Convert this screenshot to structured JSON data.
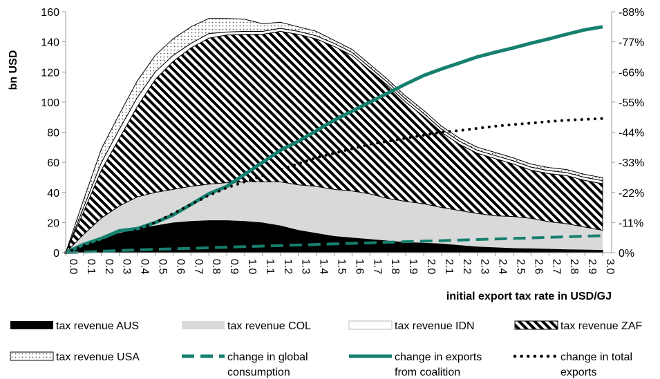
{
  "chart_data": {
    "type": "area",
    "ylabel": "bn USD",
    "xlabel": "initial export tax rate in USD/GJ",
    "x": [
      0.0,
      0.1,
      0.2,
      0.3,
      0.4,
      0.5,
      0.6,
      0.7,
      0.8,
      0.9,
      1.0,
      1.1,
      1.2,
      1.3,
      1.4,
      1.5,
      1.6,
      1.7,
      1.8,
      1.9,
      2.0,
      2.1,
      2.2,
      2.3,
      2.4,
      2.5,
      2.6,
      2.7,
      2.8,
      2.9,
      3.0
    ],
    "x_tick_labels": [
      "0.0",
      "0.1",
      "0.2",
      "0.3",
      "0.4",
      "0.5",
      "0.6",
      "0.7",
      "0.8",
      "0.9",
      "1.0",
      "1.1",
      "1.2",
      "1.3",
      "1.4",
      "1.5",
      "1.6",
      "1.7",
      "1.8",
      "1.9",
      "2.0",
      "2.1",
      "2.2",
      "2.3",
      "2.4",
      "2.5",
      "2.6",
      "2.7",
      "2.8",
      "2.9",
      "3.0"
    ],
    "ylim_left": [
      0,
      160
    ],
    "y_left_ticks": [
      "0",
      "20",
      "40",
      "60",
      "80",
      "100",
      "120",
      "140",
      "160"
    ],
    "ylim_right": [
      0,
      -88
    ],
    "y_right_ticks": [
      "0%",
      "-11%",
      "-22%",
      "-33%",
      "-44%",
      "-55%",
      "-66%",
      "-77%",
      "-88%"
    ],
    "stacked_area_series": [
      {
        "name": "tax revenue AUS",
        "pattern": "solid-black",
        "values": [
          0,
          5,
          10,
          13,
          16,
          18,
          20,
          21,
          21.5,
          21.5,
          21,
          20,
          18,
          15,
          13,
          11,
          10,
          9,
          8,
          7,
          6.5,
          6,
          5,
          4,
          3.5,
          3,
          2.8,
          2.5,
          2.2,
          2,
          1.8
        ]
      },
      {
        "name": "tax revenue COL",
        "pattern": "light-gray",
        "values": [
          0,
          7,
          13,
          18,
          21,
          22,
          22,
          23,
          24,
          25,
          26,
          27,
          29,
          30,
          31,
          31,
          31,
          30,
          28,
          27,
          26,
          24,
          23,
          22,
          21,
          21,
          20,
          18,
          17,
          15,
          13
        ]
      },
      {
        "name": "tax revenue ZAF",
        "pattern": "diagonal-stripes",
        "values": [
          0,
          15,
          32,
          45,
          60,
          75,
          85,
          92,
          97,
          98,
          98,
          98,
          100,
          100,
          98,
          95,
          90,
          82,
          75,
          66,
          58,
          50,
          44,
          40,
          38,
          35,
          32,
          32,
          32,
          31,
          31
        ]
      },
      {
        "name": "tax revenue IDN",
        "pattern": "white",
        "values": [
          0,
          3,
          5,
          6,
          6,
          5,
          4,
          3,
          3,
          2,
          2,
          2,
          2,
          2,
          2,
          2,
          2,
          2,
          2,
          2,
          2,
          2,
          2,
          2,
          2,
          2,
          2,
          2,
          2,
          2,
          2
        ]
      },
      {
        "name": "tax revenue USA",
        "pattern": "dotted",
        "values": [
          0,
          5,
          9,
          10,
          11,
          11,
          11,
          11,
          10,
          9,
          8,
          5,
          4,
          3,
          3,
          2,
          2,
          2,
          2,
          2,
          2,
          2,
          2,
          2,
          2,
          2,
          2,
          2,
          2,
          2,
          2
        ]
      }
    ],
    "line_series": [
      {
        "name": "change in global consumption",
        "style": "dashed",
        "color": "#16806f",
        "axis": "right",
        "values": [
          0,
          -0.2,
          -0.5,
          -0.8,
          -1.0,
          -1.2,
          -1.4,
          -1.6,
          -1.8,
          -2.0,
          -2.2,
          -2.4,
          -2.6,
          -2.8,
          -3.0,
          -3.2,
          -3.4,
          -3.6,
          -3.8,
          -4.0,
          -4.2,
          -4.4,
          -4.6,
          -4.8,
          -5.0,
          -5.2,
          -5.4,
          -5.6,
          -5.8,
          -6.0,
          -6.2
        ]
      },
      {
        "name": "change in exports from coalition",
        "style": "solid",
        "color": "#16806f",
        "axis": "right",
        "values": [
          0,
          -3,
          -5.2,
          -8,
          -8.8,
          -11,
          -13.8,
          -17.6,
          -21.5,
          -24.2,
          -28.6,
          -33,
          -37.4,
          -40.7,
          -44.5,
          -48.4,
          -51.7,
          -55,
          -58.3,
          -61.6,
          -64.7,
          -67.1,
          -69.3,
          -71.5,
          -73.2,
          -74.8,
          -76.5,
          -78.1,
          -79.8,
          -81.4,
          -82.5
        ]
      },
      {
        "name": "change in total exports",
        "style": "dotted",
        "color": "#000000",
        "axis": "right",
        "values": [
          0,
          -2.5,
          -4.4,
          -6,
          -8.3,
          -11,
          -14.3,
          -17.6,
          -20.9,
          -23.7,
          -25.9,
          -28.1,
          -30.3,
          -32.5,
          -34.7,
          -36.3,
          -38,
          -39.6,
          -40.7,
          -41.8,
          -42.9,
          -44,
          -44.6,
          -45.4,
          -46.2,
          -46.8,
          -47.3,
          -47.9,
          -48.4,
          -48.7,
          -49
        ]
      }
    ],
    "legend": [
      {
        "label": "tax revenue AUS",
        "kind": "solid-black"
      },
      {
        "label": "tax revenue COL",
        "kind": "light-gray"
      },
      {
        "label": "tax revenue IDN",
        "kind": "white"
      },
      {
        "label": "tax revenue ZAF",
        "kind": "diagonal-stripes"
      },
      {
        "label": "tax revenue USA",
        "kind": "dotted-fill"
      },
      {
        "label": "change in global consumption",
        "lines": [
          "change in global",
          "consumption"
        ],
        "kind": "dashed-line"
      },
      {
        "label": "change in exports from coalition",
        "lines": [
          "change in exports",
          "from coalition"
        ],
        "kind": "solid-line"
      },
      {
        "label": "change in total exports",
        "lines": [
          "change in total",
          "exports"
        ],
        "kind": "dotted-line"
      }
    ],
    "legend_placement": "bottom",
    "grid": false
  }
}
